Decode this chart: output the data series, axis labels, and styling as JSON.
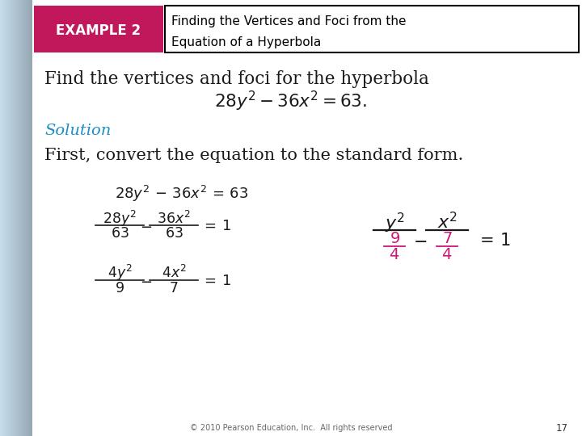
{
  "bg_left_strip": "#c5d9e8",
  "bg_color": "#f0f4f8",
  "white_bg": "#ffffff",
  "example_label": "EXAMPLE 2",
  "example_bg": "#c0185a",
  "example_text_color": "#ffffff",
  "title_line1": "Finding the Vertices and Foci from the",
  "title_line2": "Equation of a Hyperbola",
  "title_color": "#000000",
  "solution_label": "Solution",
  "solution_color": "#1a8fca",
  "footer": "© 2010 Pearson Education, Inc.  All rights reserved",
  "page_number": "17",
  "pink_color": "#cc1877",
  "dark_color": "#1a1a1a"
}
